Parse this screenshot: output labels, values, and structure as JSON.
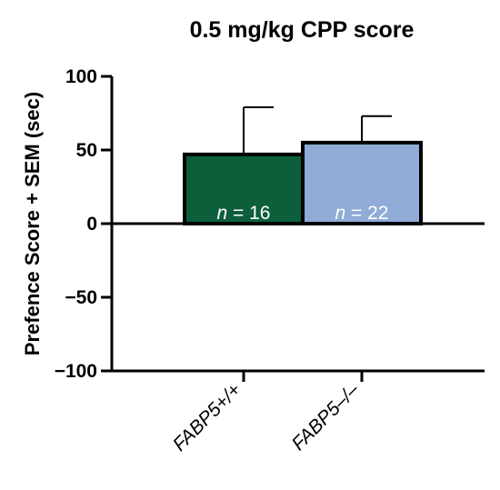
{
  "chart_data": {
    "type": "bar",
    "title": "0.5 mg/kg CPP score",
    "ylabel": "Prefence Score + SEM (sec)",
    "xlabel": "",
    "ylim": [
      -100,
      100
    ],
    "yticks": [
      100,
      50,
      0,
      -50,
      -100
    ],
    "ytick_labels": [
      "100",
      "50",
      "0",
      "−50",
      "−100"
    ],
    "categories": [
      "FABP5+/+",
      "FABP5–/–"
    ],
    "values": [
      47,
      55
    ],
    "sem": [
      32,
      18
    ],
    "n_labels": [
      {
        "italic": "n",
        "rest": " = 16"
      },
      {
        "italic": "n",
        "rest": " = 22"
      }
    ],
    "colors": [
      "#0d5f3c",
      "#8fabd6"
    ],
    "grid": false
  }
}
